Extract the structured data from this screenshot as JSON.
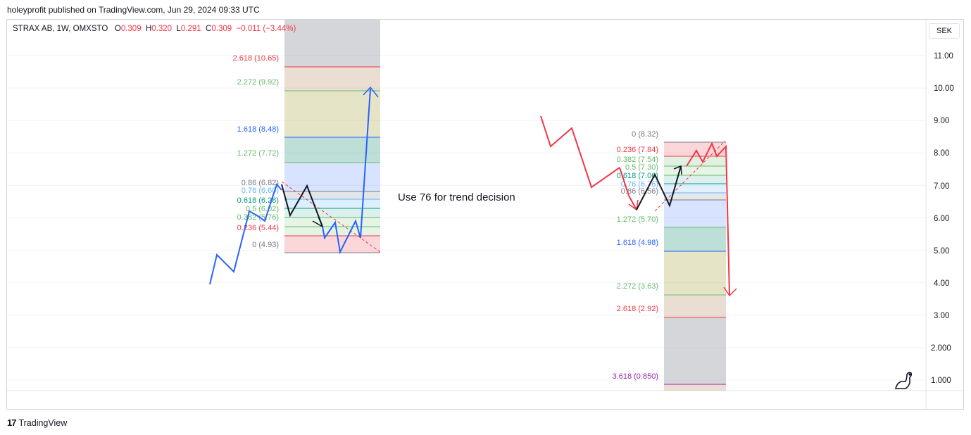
{
  "header": {
    "published": "holeyprofit published on TradingView.com, Jun 29, 2024 09:33 UTC"
  },
  "legend": {
    "symbol": "STRAX AB, 1W, OMXSTO",
    "o_label": "O",
    "o_value": "0.309",
    "h_label": "H",
    "h_value": "0.320",
    "l_label": "L",
    "l_value": "0.291",
    "c_label": "C",
    "c_value": "0.309",
    "change": "−0.011 (−3.44%)"
  },
  "currency": "SEK",
  "footer": {
    "brand": "TradingView",
    "logo": "17"
  },
  "annotation": "Use 76 for trend decision",
  "colors": {
    "blue": "#2962ff",
    "red": "#f23645",
    "green": "#66bb6a",
    "teal": "#089981",
    "lightblue": "#64b5f6",
    "gray": "#787b86",
    "purple": "#9c27b0",
    "black": "#131722"
  },
  "chart_data": {
    "type": "line",
    "yaxis_ticks": [
      "11.00",
      "10.00",
      "9.00",
      "8.00",
      "7.00",
      "6.00",
      "5.00",
      "4.00",
      "3.00",
      "2.000",
      "1.000"
    ],
    "fib_left": {
      "levels": [
        {
          "ratio": "2.618",
          "price": "10.65",
          "label": "2.618 (10.65)",
          "color": "#f23645"
        },
        {
          "ratio": "2.272",
          "price": "9.92",
          "label": "2.272 (9.92)",
          "color": "#66bb6a"
        },
        {
          "ratio": "1.618",
          "price": "8.48",
          "label": "1.618 (8.48)",
          "color": "#2962ff"
        },
        {
          "ratio": "1.272",
          "price": "7.72",
          "label": "1.272 (7.72)",
          "color": "#66bb6a"
        },
        {
          "ratio": "0.86",
          "price": "6.82",
          "label": "0.86 (6.82)",
          "color": "#787b86"
        },
        {
          "ratio": "0.76",
          "price": "6.60",
          "label": "0.76 (6.60)",
          "color": "#64b5f6"
        },
        {
          "ratio": "0.618",
          "price": "6.28",
          "label": "0.618 (6.28)",
          "color": "#089981"
        },
        {
          "ratio": "0.5",
          "price": "6.02",
          "label": "0.5 (6.02)",
          "color": "#66bb6a"
        },
        {
          "ratio": "0.382",
          "price": "5.76",
          "label": "0.382 (5.76)",
          "color": "#66bb6a"
        },
        {
          "ratio": "0.236",
          "price": "5.44",
          "label": "0.236 (5.44)",
          "color": "#f23645"
        },
        {
          "ratio": "0",
          "price": "4.93",
          "label": "0 (4.93)",
          "color": "#787b86"
        }
      ]
    },
    "fib_right": {
      "levels": [
        {
          "ratio": "0",
          "price": "8.32",
          "label": "0 (8.32)",
          "color": "#787b86"
        },
        {
          "ratio": "0.236",
          "price": "7.84",
          "label": "0.236 (7.84)",
          "color": "#f23645"
        },
        {
          "ratio": "0.382",
          "price": "7.54",
          "label": "0.382 (7.54)",
          "color": "#66bb6a"
        },
        {
          "ratio": "0.5",
          "price": "7.30",
          "label": "0.5 (7.30)",
          "color": "#66bb6a"
        },
        {
          "ratio": "0.618",
          "price": "7.06",
          "label": "0.618 (7.06)",
          "color": "#089981"
        },
        {
          "ratio": "0.76",
          "price": "6.76",
          "label": "0.76 (6.76)",
          "color": "#64b5f6"
        },
        {
          "ratio": "0.86",
          "price": "6.56",
          "label": "0.86 (6.56)",
          "color": "#787b86"
        },
        {
          "ratio": "1.272",
          "price": "5.70",
          "label": "1.272 (5.70)",
          "color": "#66bb6a"
        },
        {
          "ratio": "1.618",
          "price": "4.98",
          "label": "1.618 (4.98)",
          "color": "#2962ff"
        },
        {
          "ratio": "2.272",
          "price": "3.63",
          "label": "2.272 (3.63)",
          "color": "#66bb6a"
        },
        {
          "ratio": "2.618",
          "price": "2.92",
          "label": "2.618 (2.92)",
          "color": "#f23645"
        },
        {
          "ratio": "3.618",
          "price": "0.850",
          "label": "3.618 (0.850)",
          "color": "#9c27b0"
        }
      ]
    }
  }
}
